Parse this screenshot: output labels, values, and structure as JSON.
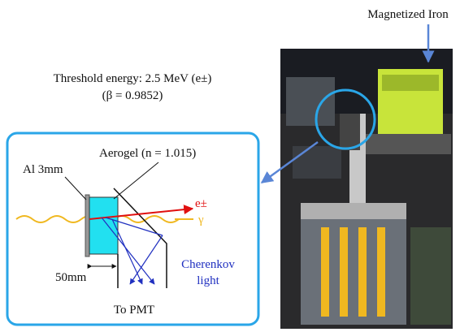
{
  "header": {
    "threshold": "Threshold energy: 2.5 MeV (e±)",
    "beta": "(β = 0.9852)"
  },
  "photo": {
    "label": "Magnetized Iron"
  },
  "diagram": {
    "aerogel": "Aerogel (n = 1.015)",
    "al": "Al 3mm",
    "electron": "e±",
    "gamma": "γ",
    "thickness": "50mm",
    "cherenkov_1": "Cherenkov",
    "cherenkov_2": "light",
    "pmt": "To PMT"
  }
}
